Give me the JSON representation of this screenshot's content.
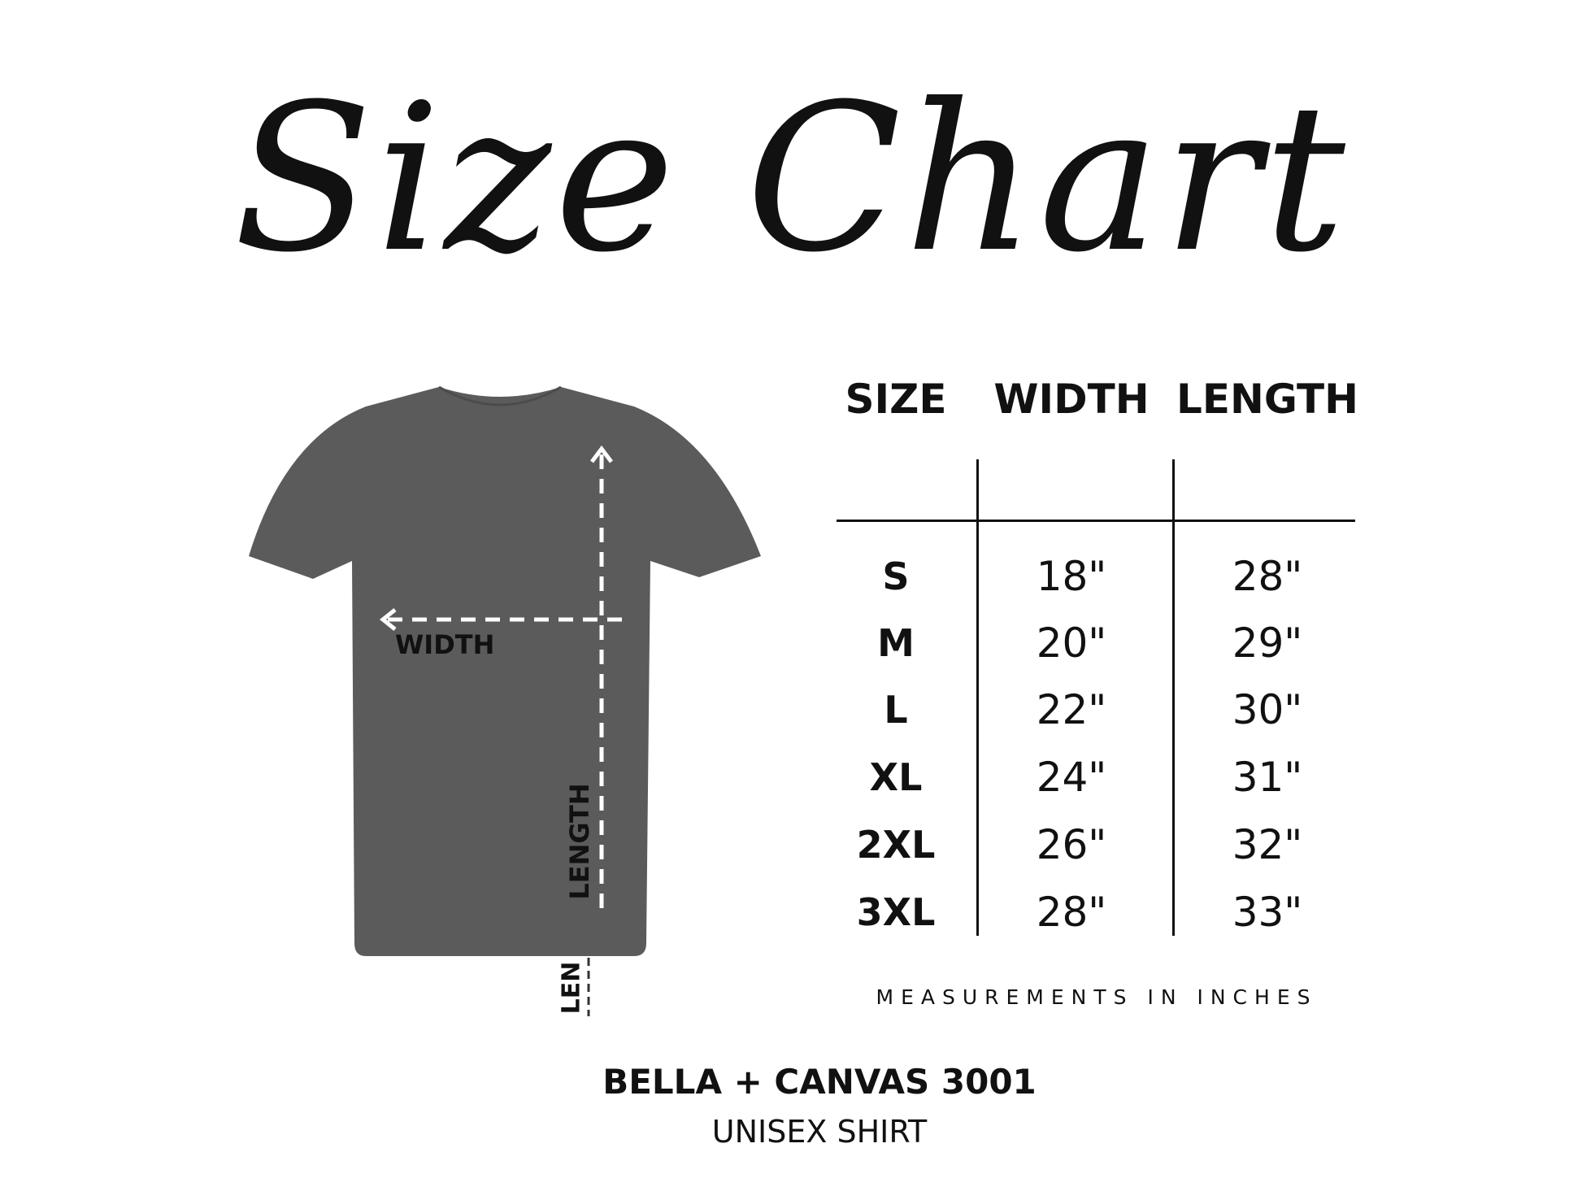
{
  "title": "Size Chart",
  "shirt": {
    "color": "#5b5b5b",
    "width_label": "WIDTH",
    "length_label": "LENGTH",
    "length_label_fragment": "LEN"
  },
  "table": {
    "headers": [
      "SIZE",
      "WIDTH",
      "LENGTH"
    ],
    "rows": [
      {
        "size": "S",
        "width": "18\"",
        "length": "28\""
      },
      {
        "size": "M",
        "width": "20\"",
        "length": "29\""
      },
      {
        "size": "L",
        "width": "22\"",
        "length": "30\""
      },
      {
        "size": "XL",
        "width": "24\"",
        "length": "31\""
      },
      {
        "size": "2XL",
        "width": "26\"",
        "length": "32\""
      },
      {
        "size": "3XL",
        "width": "28\"",
        "length": "33\""
      }
    ],
    "note": "MEASUREMENTS IN INCHES"
  },
  "product": {
    "name": "BELLA + CANVAS 3001",
    "type": "UNISEX SHIRT"
  }
}
